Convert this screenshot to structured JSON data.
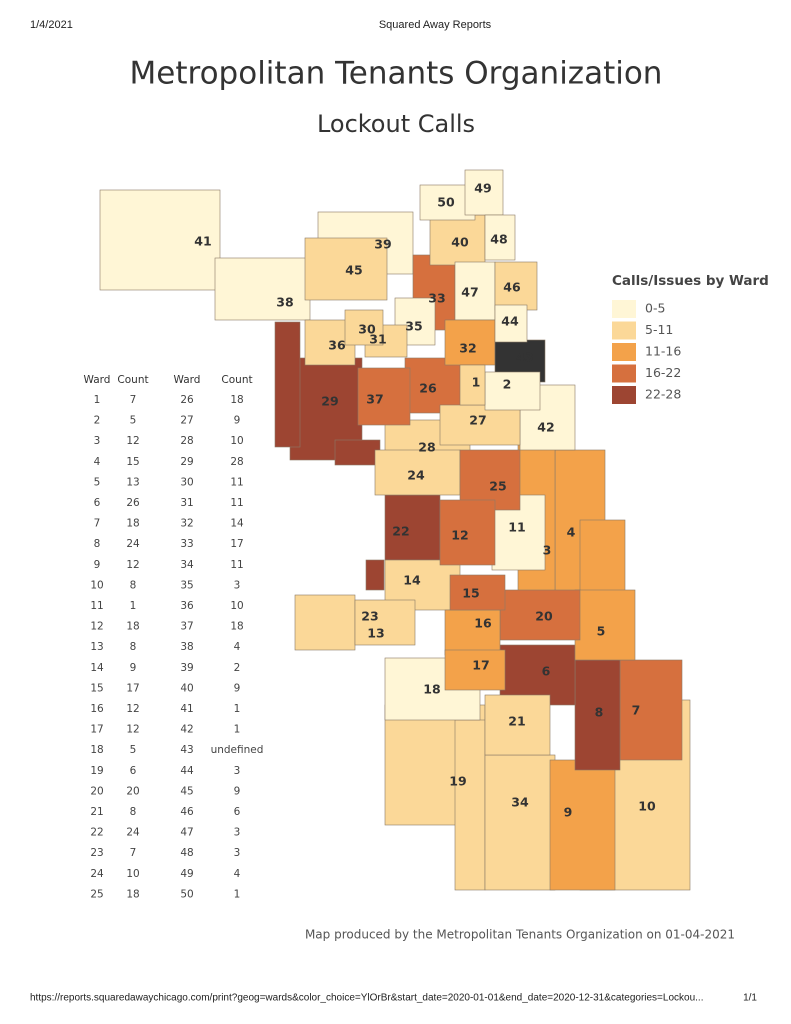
{
  "header": {
    "date": "1/4/2021",
    "site": "Squared Away Reports"
  },
  "title": "Metropolitan Tenants Organization",
  "subtitle": "Lockout Calls",
  "legend": {
    "title": "Calls/Issues by Ward",
    "items": [
      {
        "label": "0-5",
        "color": "#fff6d6"
      },
      {
        "label": "5-11",
        "color": "#fbd898"
      },
      {
        "label": "11-16",
        "color": "#f3a24a"
      },
      {
        "label": "16-22",
        "color": "#d6703e"
      },
      {
        "label": "22-28",
        "color": "#9d4532"
      }
    ]
  },
  "table": {
    "headers": [
      "Ward",
      "Count",
      "Ward",
      "Count"
    ],
    "rows": [
      [
        1,
        7,
        26,
        18
      ],
      [
        2,
        5,
        27,
        9
      ],
      [
        3,
        12,
        28,
        10
      ],
      [
        4,
        15,
        29,
        28
      ],
      [
        5,
        13,
        30,
        11
      ],
      [
        6,
        26,
        31,
        11
      ],
      [
        7,
        18,
        32,
        14
      ],
      [
        8,
        24,
        33,
        17
      ],
      [
        9,
        12,
        34,
        11
      ],
      [
        10,
        8,
        35,
        3
      ],
      [
        11,
        1,
        36,
        10
      ],
      [
        12,
        18,
        37,
        18
      ],
      [
        13,
        8,
        38,
        4
      ],
      [
        14,
        9,
        39,
        2
      ],
      [
        15,
        17,
        40,
        9
      ],
      [
        16,
        12,
        41,
        1
      ],
      [
        17,
        12,
        42,
        1
      ],
      [
        18,
        5,
        43,
        "undefined"
      ],
      [
        19,
        6,
        44,
        3
      ],
      [
        20,
        20,
        45,
        9
      ],
      [
        21,
        8,
        46,
        6
      ],
      [
        22,
        24,
        47,
        3
      ],
      [
        23,
        7,
        48,
        3
      ],
      [
        24,
        10,
        49,
        4
      ],
      [
        25,
        18,
        50,
        1
      ]
    ]
  },
  "note": "Map produced by the Metropolitan Tenants Organization on 01-04-2021",
  "footer": {
    "url": "https://reports.squaredawaychicago.com/print?geog=wards&color_choice=YlOrBr&start_date=2020-01-01&end_date=2020-12-31&categories=Lockou...",
    "page": "1/1"
  }
}
